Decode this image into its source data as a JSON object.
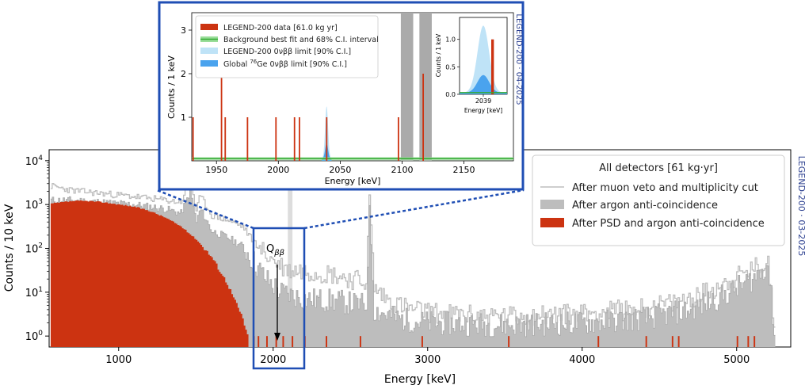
{
  "colors": {
    "red": "#cc3311",
    "gray": "#bdbdbd",
    "gray_dark": "#a9a9a9",
    "green": "#33aa33",
    "green_band": "#99dd99",
    "light_blue": "#bfe3f7",
    "blue": "#4aa3ee",
    "frame_blue": "#1f4eb4",
    "watermark": "#2b3f8f"
  },
  "main_chart": {
    "type": "bar",
    "xlabel": "Energy [keV]",
    "ylabel": "Counts / 10 keV",
    "xlim": [
      550,
      5350
    ],
    "ylim_log10": [
      -0.25,
      4.25
    ],
    "x_ticks": [
      {
        "value": 1000,
        "label": "1000"
      },
      {
        "value": 2000,
        "label": "2000"
      },
      {
        "value": 3000,
        "label": "3000"
      },
      {
        "value": 4000,
        "label": "4000"
      },
      {
        "value": 5000,
        "label": "5000"
      }
    ],
    "y_ticks": [
      {
        "exp": 0,
        "base": "10",
        "sup": "0"
      },
      {
        "exp": 1,
        "base": "10",
        "sup": "1"
      },
      {
        "exp": 2,
        "base": "10",
        "sup": "2"
      },
      {
        "exp": 3,
        "base": "10",
        "sup": "3"
      },
      {
        "exp": 4,
        "base": "10",
        "sup": "4"
      }
    ],
    "qbb_label": "Q",
    "qbb_sub": "ββ",
    "qbb_energy": 2039,
    "watermark": "LEGEND-200 · 03-2025",
    "legend": {
      "title": "All detectors [61 kg·yr]",
      "entries": [
        "After muon veto and multiplicity cut",
        "After argon anti-coincidence",
        "After PSD and argon anti-coincidence"
      ]
    },
    "series_description": "log10 counts per 10 keV",
    "muon_veto_log10": [
      [
        560,
        3.42
      ],
      [
        700,
        3.32
      ],
      [
        900,
        3.25
      ],
      [
        1100,
        3.18
      ],
      [
        1300,
        3.1
      ],
      [
        1400,
        3.05
      ],
      [
        1460,
        3.6
      ],
      [
        1500,
        2.85
      ],
      [
        1525,
        3.2
      ],
      [
        1600,
        2.75
      ],
      [
        1700,
        2.65
      ],
      [
        1800,
        2.5
      ],
      [
        1850,
        2.25
      ],
      [
        1950,
        1.85
      ],
      [
        2050,
        1.6
      ],
      [
        2100,
        1.5
      ],
      [
        2200,
        1.5
      ],
      [
        2300,
        1.45
      ],
      [
        2400,
        1.4
      ],
      [
        2500,
        1.3
      ],
      [
        2600,
        1.25
      ],
      [
        2620,
        3.2
      ],
      [
        2650,
        1.1
      ],
      [
        2750,
        0.8
      ],
      [
        2900,
        0.6
      ],
      [
        3100,
        0.5
      ],
      [
        3500,
        0.45
      ],
      [
        3900,
        0.5
      ],
      [
        4300,
        0.6
      ],
      [
        4600,
        0.75
      ],
      [
        4800,
        1.0
      ],
      [
        5000,
        1.35
      ],
      [
        5200,
        1.7
      ],
      [
        5240,
        0.1
      ]
    ],
    "argon_ac_log10": [
      [
        560,
        3.1
      ],
      [
        700,
        3.1
      ],
      [
        900,
        3.05
      ],
      [
        1100,
        3.0
      ],
      [
        1300,
        2.9
      ],
      [
        1400,
        2.8
      ],
      [
        1460,
        3.3
      ],
      [
        1500,
        2.6
      ],
      [
        1525,
        2.9
      ],
      [
        1600,
        2.4
      ],
      [
        1700,
        2.25
      ],
      [
        1800,
        2.05
      ],
      [
        1850,
        1.8
      ],
      [
        1950,
        1.3
      ],
      [
        2050,
        1.0
      ],
      [
        2200,
        0.85
      ],
      [
        2400,
        0.8
      ],
      [
        2600,
        0.7
      ],
      [
        2620,
        2.9
      ],
      [
        2650,
        0.6
      ],
      [
        2800,
        0.4
      ],
      [
        3000,
        0.3
      ],
      [
        3500,
        0.25
      ],
      [
        4000,
        0.3
      ],
      [
        4400,
        0.4
      ],
      [
        4700,
        0.6
      ],
      [
        4900,
        0.9
      ],
      [
        5100,
        1.3
      ],
      [
        5200,
        1.65
      ],
      [
        5240,
        0.1
      ]
    ],
    "psd_log10": [
      [
        560,
        3.02
      ],
      [
        700,
        3.08
      ],
      [
        800,
        3.08
      ],
      [
        900,
        3.05
      ],
      [
        1000,
        3.0
      ],
      [
        1100,
        2.95
      ],
      [
        1200,
        2.85
      ],
      [
        1300,
        2.7
      ],
      [
        1400,
        2.5
      ],
      [
        1500,
        2.2
      ],
      [
        1600,
        1.8
      ],
      [
        1700,
        1.2
      ],
      [
        1750,
        0.8
      ],
      [
        1800,
        0.4
      ],
      [
        1830,
        0.0
      ]
    ],
    "psd_spikes": [
      1870,
      1900,
      1955,
      2015,
      2060,
      2120,
      2200,
      2340,
      2560,
      2960,
      3520,
      4100,
      4410,
      4580,
      4620,
      5000,
      5070,
      5110
    ],
    "box_energy_range": [
      1880,
      2220
    ]
  },
  "inset_chart": {
    "type": "bar",
    "xlabel": "Energy [keV]",
    "ylabel": "Counts / 1 keV",
    "xlim": [
      1930,
      2190
    ],
    "ylim": [
      0,
      3.4
    ],
    "x_ticks": [
      {
        "value": 1950,
        "label": "1950"
      },
      {
        "value": 2000,
        "label": "2000"
      },
      {
        "value": 2050,
        "label": "2050"
      },
      {
        "value": 2100,
        "label": "2100"
      },
      {
        "value": 2150,
        "label": "2150"
      }
    ],
    "y_ticks": [
      {
        "value": 1,
        "label": "1"
      },
      {
        "value": 2,
        "label": "2"
      },
      {
        "value": 3,
        "label": "3"
      }
    ],
    "legend": [
      "LEGEND-200 data [61.0 kg yr]",
      "Background best fit and 68% C.I. interval",
      "LEGEND-200 0νββ limit [90% C.I.]"
    ],
    "legend_global_pre": "Global ",
    "legend_global_sup": "76",
    "legend_global_post": "Ge 0νββ limit [90% C.I.]",
    "watermark": "LEGEND-200 · 04-2025",
    "events": [
      1931,
      1954,
      1957,
      1975,
      1998,
      2013,
      2017,
      2039,
      2097,
      2117
    ],
    "event_heights": [
      1,
      2,
      1,
      1,
      1,
      1,
      1,
      1,
      1,
      2
    ],
    "excluded_bands": [
      [
        2099,
        2109
      ],
      [
        2114,
        2124
      ]
    ],
    "background_level": 0.05,
    "zoom": {
      "xlabel": "Energy [keV]",
      "ylabel": "Counts / 1 keV",
      "xlim": [
        2030,
        2048
      ],
      "ylim": [
        0,
        1.4
      ],
      "x_ticks": [
        {
          "value": 2039,
          "label": "2039"
        }
      ],
      "y_ticks": [
        {
          "value": 0.0,
          "label": "0.0"
        },
        {
          "value": 0.5,
          "label": "0.5"
        },
        {
          "value": 1.0,
          "label": "1.0"
        }
      ],
      "l200_peak": 1.25,
      "global_peak": 0.35,
      "data_bin_x": 2042,
      "data_bin_h": 1.0
    }
  }
}
